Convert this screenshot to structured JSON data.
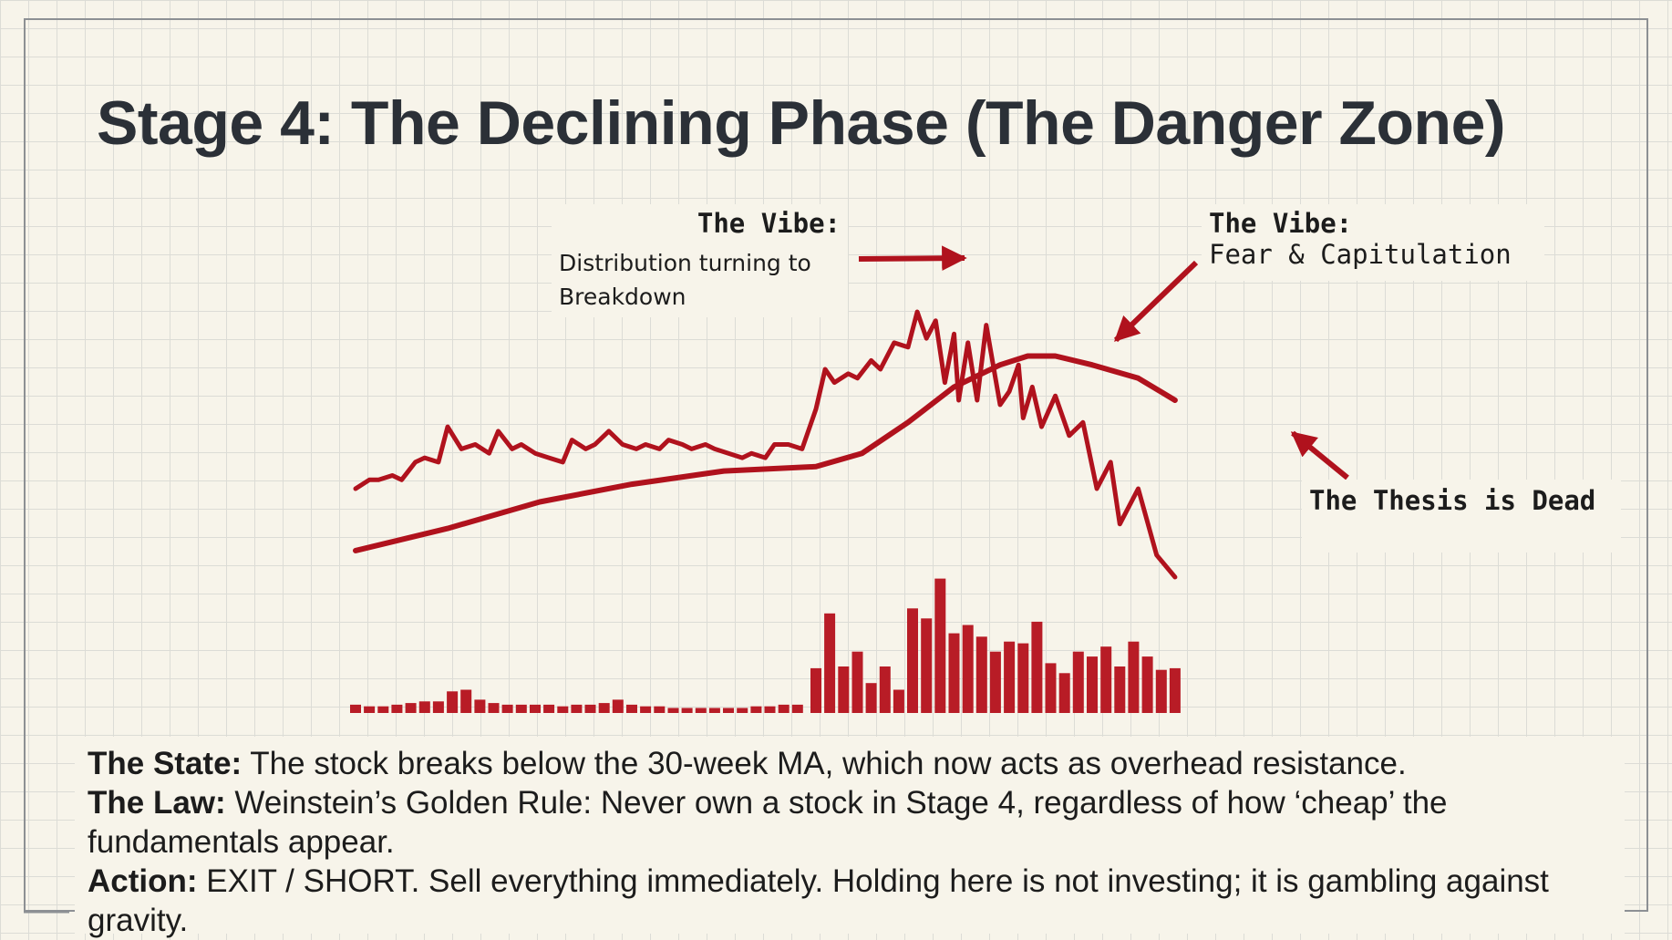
{
  "title": "Stage 4: The Declining Phase (The Danger Zone)",
  "annotations": {
    "vibe1_label": "The Vibe:",
    "vibe1_text_line1": "Distribution turning to",
    "vibe1_text_line2": "Breakdown",
    "vibe2_label": "The Vibe:",
    "vibe2_text": "Fear & Capitulation",
    "thesis": "The Thesis is Dead"
  },
  "body": {
    "state_label": "The State:",
    "state_text": " The stock breaks below the 30-week MA, which now acts as overhead resistance.",
    "law_label": "The Law:",
    "law_text": " Weinstein’s Golden Rule: Never own a stock in Stage 4, regardless of how ‘cheap’ the fundamentals appear.",
    "action_label": "Action:",
    "action_text": " EXIT / SHORT. Sell everything immediately. Holding here is not investing; it is gambling against gravity."
  },
  "colors": {
    "accent": "#b0121d",
    "volume": "#b81c26",
    "ink": "#1c1c1c",
    "title": "#2b3037"
  },
  "chart_data": {
    "type": "line",
    "xlim": [
      0,
      100
    ],
    "ylim": [
      0,
      100
    ],
    "grid": true,
    "series": [
      {
        "name": "Price",
        "x": [
          0,
          1.5,
          2.5,
          4,
          5,
          6.5,
          7.5,
          9,
          10,
          11.5,
          13,
          14.5,
          15.5,
          17,
          18,
          19.5,
          21,
          22.5,
          23.5,
          25,
          26,
          27.5,
          29,
          30.5,
          31.5,
          33,
          34,
          35.5,
          36.5,
          38,
          39,
          40.5,
          42,
          43,
          44.5,
          45.5,
          47,
          48.5,
          50,
          51,
          52,
          53.5,
          54.5,
          56,
          57,
          58.5,
          60,
          61,
          62,
          63,
          64,
          65,
          65.5,
          66.5,
          67.5,
          68.5,
          69.5,
          70,
          71,
          72,
          72.5,
          73.5,
          74.5,
          76,
          77.5,
          79,
          80.5,
          82,
          83,
          85,
          87,
          89
        ],
        "values": [
          40,
          42,
          42,
          43,
          42,
          46,
          47,
          46,
          54,
          49,
          50,
          48,
          53,
          49,
          50,
          48,
          47,
          46,
          51,
          49,
          50,
          53,
          50,
          49,
          50,
          49,
          51,
          50,
          49,
          50,
          49,
          48,
          47,
          48,
          47,
          50,
          50,
          49,
          58,
          67,
          64,
          66,
          65,
          69,
          67,
          73,
          72,
          80,
          74,
          78,
          64,
          75,
          60,
          73,
          60,
          77,
          65,
          59,
          62,
          68,
          56,
          63,
          54,
          61,
          52,
          55,
          40,
          46,
          32,
          40,
          25,
          20
        ],
        "color": "#b0121d"
      },
      {
        "name": "30-week MA",
        "x": [
          0,
          10,
          20,
          30,
          40,
          50,
          55,
          60,
          65,
          70,
          73,
          76,
          80,
          85,
          89
        ],
        "values": [
          26,
          31,
          37,
          41,
          44,
          45,
          48,
          55,
          63,
          68,
          70,
          70,
          68,
          65,
          60
        ],
        "color": "#b0121d"
      },
      {
        "name": "Volume",
        "x": [
          0,
          1.5,
          3,
          4.5,
          6,
          7.5,
          9,
          10.5,
          12,
          13.5,
          15,
          16.5,
          18,
          19.5,
          21,
          22.5,
          24,
          25.5,
          27,
          28.5,
          30,
          31.5,
          33,
          34.5,
          36,
          37.5,
          39,
          40.5,
          42,
          43.5,
          45,
          46.5,
          48,
          50,
          51.5,
          53,
          54.5,
          56,
          57.5,
          59,
          60.5,
          62,
          63.5,
          65,
          66.5,
          68,
          69.5,
          71,
          72.5,
          74,
          75.5,
          77,
          78.5,
          80,
          81.5,
          83,
          84.5,
          86,
          87.5,
          89
        ],
        "values": [
          5,
          4,
          4,
          5,
          6,
          7,
          7,
          13,
          14,
          8,
          6,
          5,
          5,
          5,
          5,
          4,
          5,
          5,
          6,
          8,
          5,
          4,
          4,
          3,
          3,
          3,
          3,
          3,
          3,
          4,
          4,
          5,
          5,
          27,
          60,
          28,
          37,
          18,
          28,
          14,
          63,
          57,
          81,
          48,
          53,
          46,
          37,
          43,
          42,
          55,
          30,
          24,
          37,
          34,
          40,
          28,
          43,
          34,
          26,
          27
        ],
        "color": "#b81c26"
      }
    ]
  }
}
